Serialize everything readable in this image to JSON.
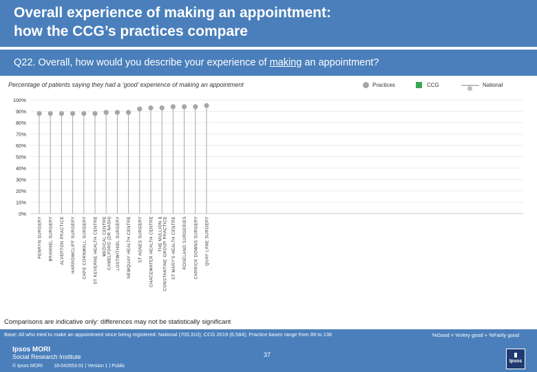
{
  "header": {
    "title_line1": "Overall experience of making an appointment:",
    "title_line2": "how the CCG’s practices compare"
  },
  "question": {
    "prefix": "Q22. Overall, how would you describe your experience of ",
    "underlined": "making",
    "suffix": " an appointment?"
  },
  "subtitle": "Percentage of patients saying they had a ‘good’ experience of making an appointment",
  "legend": {
    "practices": "Practices",
    "ccg": "CCG",
    "national": "National"
  },
  "colors": {
    "header_bg": "#4a7fbb",
    "practice_marker": "#a6a6a6",
    "ccg": "#3aa655",
    "national": "#bfbfbf"
  },
  "chart_data": {
    "type": "scatter",
    "y_tick_labels": [
      "100%",
      "90%",
      "80%",
      "70%",
      "60%",
      "50%",
      "40%",
      "30%",
      "20%",
      "10%",
      "0%"
    ],
    "ylim": [
      0,
      100
    ],
    "categories": [
      "PENRYN SURGERY",
      "BRANNEL SURGERY",
      "ALVERTON PRACTICE",
      "HARROWCLIFF SURGERY",
      "CAPE CORNWALL SURGERY",
      "ST KEVERNE HEALTH CENTRE",
      "MEDICAL CENTRE CAMELFORD (DR NASH)",
      "LOSTWITHIEL SURGERY",
      "NEWQUAY HEALTH CENTRE",
      "ST AGNES SURGERY",
      "CHACEWATER HEALTH CENTRE",
      "THE MULLION & CONSTANTINE GROUP PRACTICE",
      "ST MARY'S HEALTH CENTRE",
      "ROSELAND SURGERIES",
      "CARRICK DOWNS SURGERY",
      "QUAY LANE SURGERY"
    ],
    "series": [
      {
        "name": "Practices",
        "values": [
          88,
          88,
          88,
          88,
          88,
          88,
          89,
          89,
          89,
          92,
          93,
          93,
          94,
          94,
          94,
          95
        ]
      }
    ]
  },
  "note": "Comparisons are indicative only: differences may not be statistically significant",
  "footer": {
    "base": "Base: All who tried to make an appointment since being registered: National (705,310); CCG 2019 (6,584); Practice bases range from 89 to 136",
    "key": "%Good = %Very good + %Fairly good",
    "brand_line1": "Ipsos MORI",
    "brand_line2": "Social Research Institute",
    "copyright": "© Ipsos MORI",
    "job": "18-042653-01 | Version 1 | Public",
    "page": "37",
    "logo_text": "Ipsos"
  }
}
